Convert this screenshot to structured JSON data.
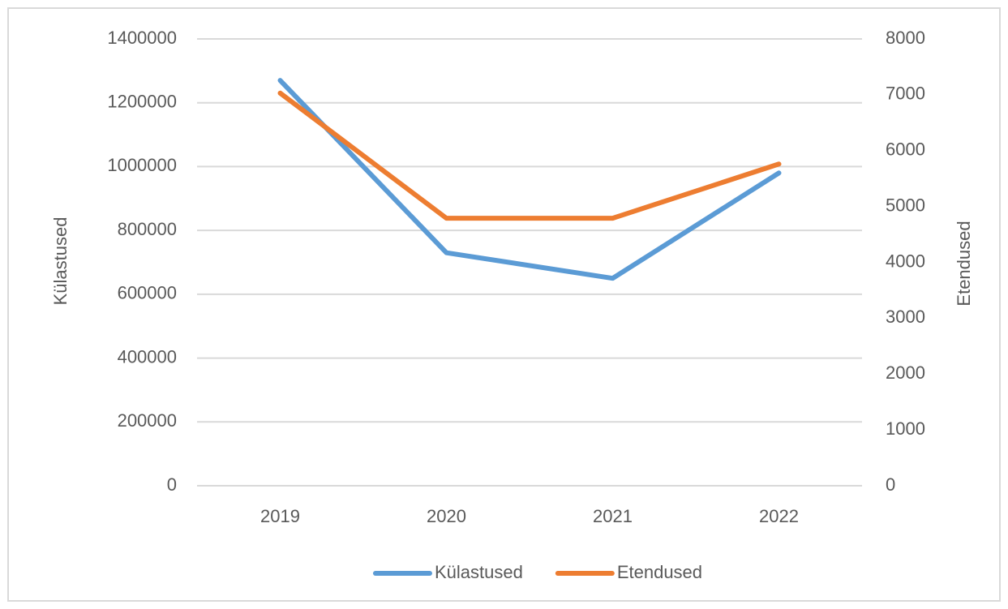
{
  "chart_data": {
    "type": "line",
    "categories": [
      "2019",
      "2020",
      "2021",
      "2022"
    ],
    "series": [
      {
        "name": "Külastused",
        "color": "#5b9bd5",
        "values": [
          1270000,
          730000,
          650000,
          980000
        ]
      },
      {
        "name": "Etendused",
        "color": "#ed7d31",
        "values": [
          7030,
          4790,
          4790,
          5760
        ],
        "axis": "y2"
      }
    ],
    "ylabel": "Külastused",
    "y2label": "Etendused",
    "ylim": [
      0,
      1400000
    ],
    "yticks": [
      0,
      200000,
      400000,
      600000,
      800000,
      1000000,
      1200000,
      1400000
    ],
    "y2lim": [
      0,
      8000
    ],
    "y2ticks": [
      0,
      1000,
      2000,
      3000,
      4000,
      5000,
      6000,
      7000,
      8000
    ],
    "grid": true,
    "legend": "bottom"
  }
}
